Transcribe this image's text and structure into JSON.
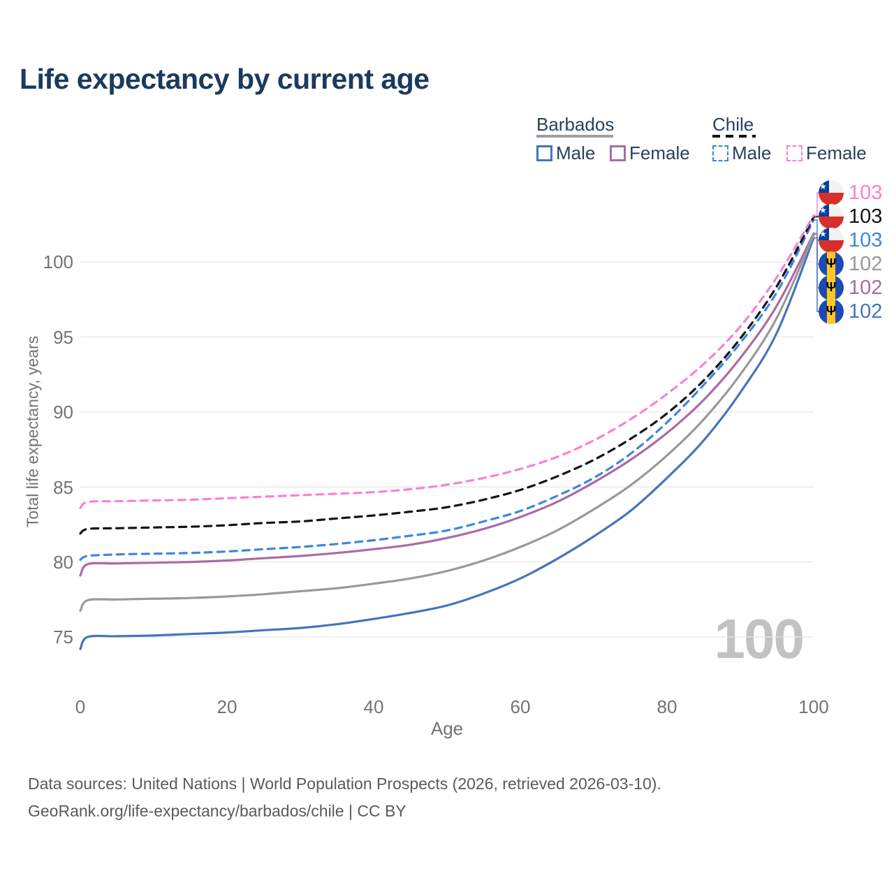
{
  "header": {
    "title": "Life expectancy by current age"
  },
  "legend": {
    "groups": [
      {
        "label": "Barbados",
        "line_style": "solid",
        "items": [
          {
            "label": "Male",
            "color": "#4575bb"
          },
          {
            "label": "Female",
            "color": "#ab6ba6"
          }
        ]
      },
      {
        "label": "Chile",
        "line_style": "dashed",
        "items": [
          {
            "label": "Male",
            "color": "#3c86e0"
          },
          {
            "label": "Female",
            "color": "#fa80d5"
          }
        ]
      }
    ]
  },
  "chart_data": {
    "type": "line",
    "title": "Life expectancy by current age",
    "xlabel": "Age",
    "ylabel": "Total life expectancy, years",
    "xlim": [
      0,
      100
    ],
    "ylim": [
      73.5,
      105
    ],
    "x_ticks": [
      0,
      20,
      40,
      60,
      80,
      100
    ],
    "y_ticks": [
      75,
      80,
      85,
      90,
      95,
      100
    ],
    "grid": "horizontal",
    "legend_position": "top-right",
    "watermark": "100",
    "x": [
      0,
      1,
      5,
      10,
      15,
      20,
      25,
      30,
      35,
      40,
      45,
      50,
      55,
      60,
      65,
      70,
      75,
      80,
      85,
      90,
      95,
      100
    ],
    "series": [
      {
        "name": "Chile Female",
        "country": "Chile",
        "sex": "female",
        "line": "dashed",
        "color": "#fa80d5",
        "flag": "chile",
        "end_label": "103",
        "label_row": 0,
        "values": [
          83.6,
          84.0,
          84.05,
          84.1,
          84.15,
          84.25,
          84.35,
          84.45,
          84.55,
          84.65,
          84.85,
          85.15,
          85.6,
          86.2,
          87.0,
          88.1,
          89.5,
          91.2,
          93.2,
          95.7,
          99.0,
          103.1
        ]
      },
      {
        "name": "Chile",
        "country": "Chile",
        "sex": "total",
        "line": "dashed",
        "color": "#141414",
        "flag": "chile",
        "end_label": "103",
        "label_row": 1,
        "values": [
          81.9,
          82.2,
          82.25,
          82.3,
          82.35,
          82.45,
          82.6,
          82.7,
          82.9,
          83.1,
          83.35,
          83.65,
          84.15,
          84.8,
          85.7,
          86.8,
          88.2,
          89.9,
          92.1,
          94.9,
          98.4,
          103.0
        ]
      },
      {
        "name": "Chile Male",
        "country": "Chile",
        "sex": "male",
        "line": "dashed",
        "color": "#3c86e0",
        "flag": "chile",
        "end_label": "103",
        "label_row": 2,
        "values": [
          80.15,
          80.4,
          80.5,
          80.55,
          80.6,
          80.7,
          80.85,
          81.0,
          81.2,
          81.45,
          81.75,
          82.1,
          82.7,
          83.4,
          84.4,
          85.6,
          87.2,
          89.3,
          91.8,
          94.6,
          98.0,
          102.8
        ]
      },
      {
        "name": "Barbados",
        "country": "Barbados",
        "sex": "total",
        "line": "solid",
        "color": "#999999",
        "flag": "barbados",
        "end_label": "102",
        "label_row": 3,
        "values": [
          76.75,
          77.45,
          77.5,
          77.55,
          77.6,
          77.7,
          77.85,
          78.05,
          78.25,
          78.55,
          78.9,
          79.4,
          80.1,
          81.0,
          82.1,
          83.5,
          85.1,
          87.1,
          89.5,
          92.5,
          96.3,
          101.8
        ]
      },
      {
        "name": "Barbados Female",
        "country": "Barbados",
        "sex": "female",
        "line": "solid",
        "color": "#ab6ba6",
        "flag": "barbados",
        "end_label": "102",
        "label_row": 4,
        "values": [
          79.1,
          79.85,
          79.9,
          79.95,
          80.0,
          80.1,
          80.25,
          80.4,
          80.6,
          80.85,
          81.15,
          81.6,
          82.2,
          83.0,
          84.0,
          85.3,
          86.8,
          88.6,
          90.8,
          93.6,
          97.1,
          101.9
        ]
      },
      {
        "name": "Barbados Male",
        "country": "Barbados",
        "sex": "male",
        "line": "solid",
        "color": "#4575bb",
        "flag": "barbados",
        "end_label": "102",
        "label_row": 5,
        "values": [
          74.2,
          75.0,
          75.05,
          75.1,
          75.2,
          75.3,
          75.45,
          75.6,
          75.85,
          76.2,
          76.6,
          77.1,
          77.9,
          78.9,
          80.2,
          81.7,
          83.4,
          85.6,
          88.1,
          91.3,
          95.3,
          101.6
        ]
      }
    ]
  },
  "footer": {
    "line1": "Data sources: United Nations | World Population Prospects (2026, retrieved 2026-03-10).",
    "line2": "GeoRank.org/life-expectancy/barbados/chile | CC BY"
  }
}
